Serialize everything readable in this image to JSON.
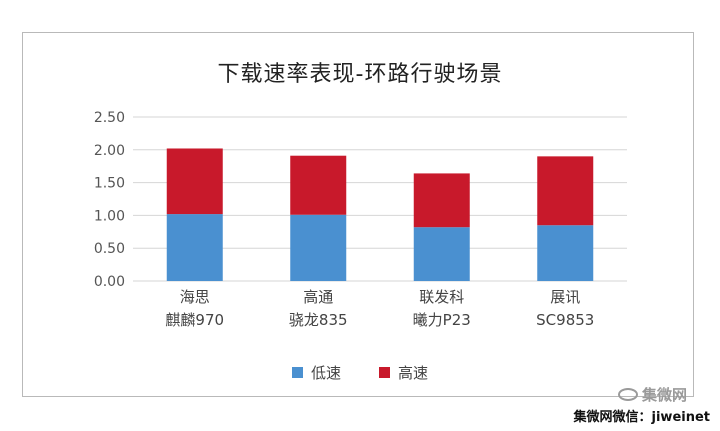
{
  "chart_data": {
    "type": "bar",
    "stacked": true,
    "title": "下载速率表现-环路行驶场景",
    "categories": [
      [
        "海思",
        "麒麟970"
      ],
      [
        "高通",
        "骁龙835"
      ],
      [
        "联发科",
        "曦力P23"
      ],
      [
        "展讯",
        "SC9853"
      ]
    ],
    "series": [
      {
        "name": "低速",
        "color": "#4a90d0",
        "values": [
          1.02,
          1.01,
          0.82,
          0.85
        ]
      },
      {
        "name": "高速",
        "color": "#c8192b",
        "values": [
          1.0,
          0.9,
          0.82,
          1.05
        ]
      }
    ],
    "ylim": [
      0,
      2.5
    ],
    "yticks": [
      "0.00",
      "0.50",
      "1.00",
      "1.50",
      "2.00",
      "2.50"
    ],
    "grid": true,
    "legend_position": "bottom"
  },
  "legend": {
    "low": {
      "label": "低速",
      "color": "#4a90d0"
    },
    "high": {
      "label": "高速",
      "color": "#c8192b"
    }
  },
  "watermark": {
    "logo_text": "集微网",
    "credit": "集微网微信：jiweinet"
  }
}
